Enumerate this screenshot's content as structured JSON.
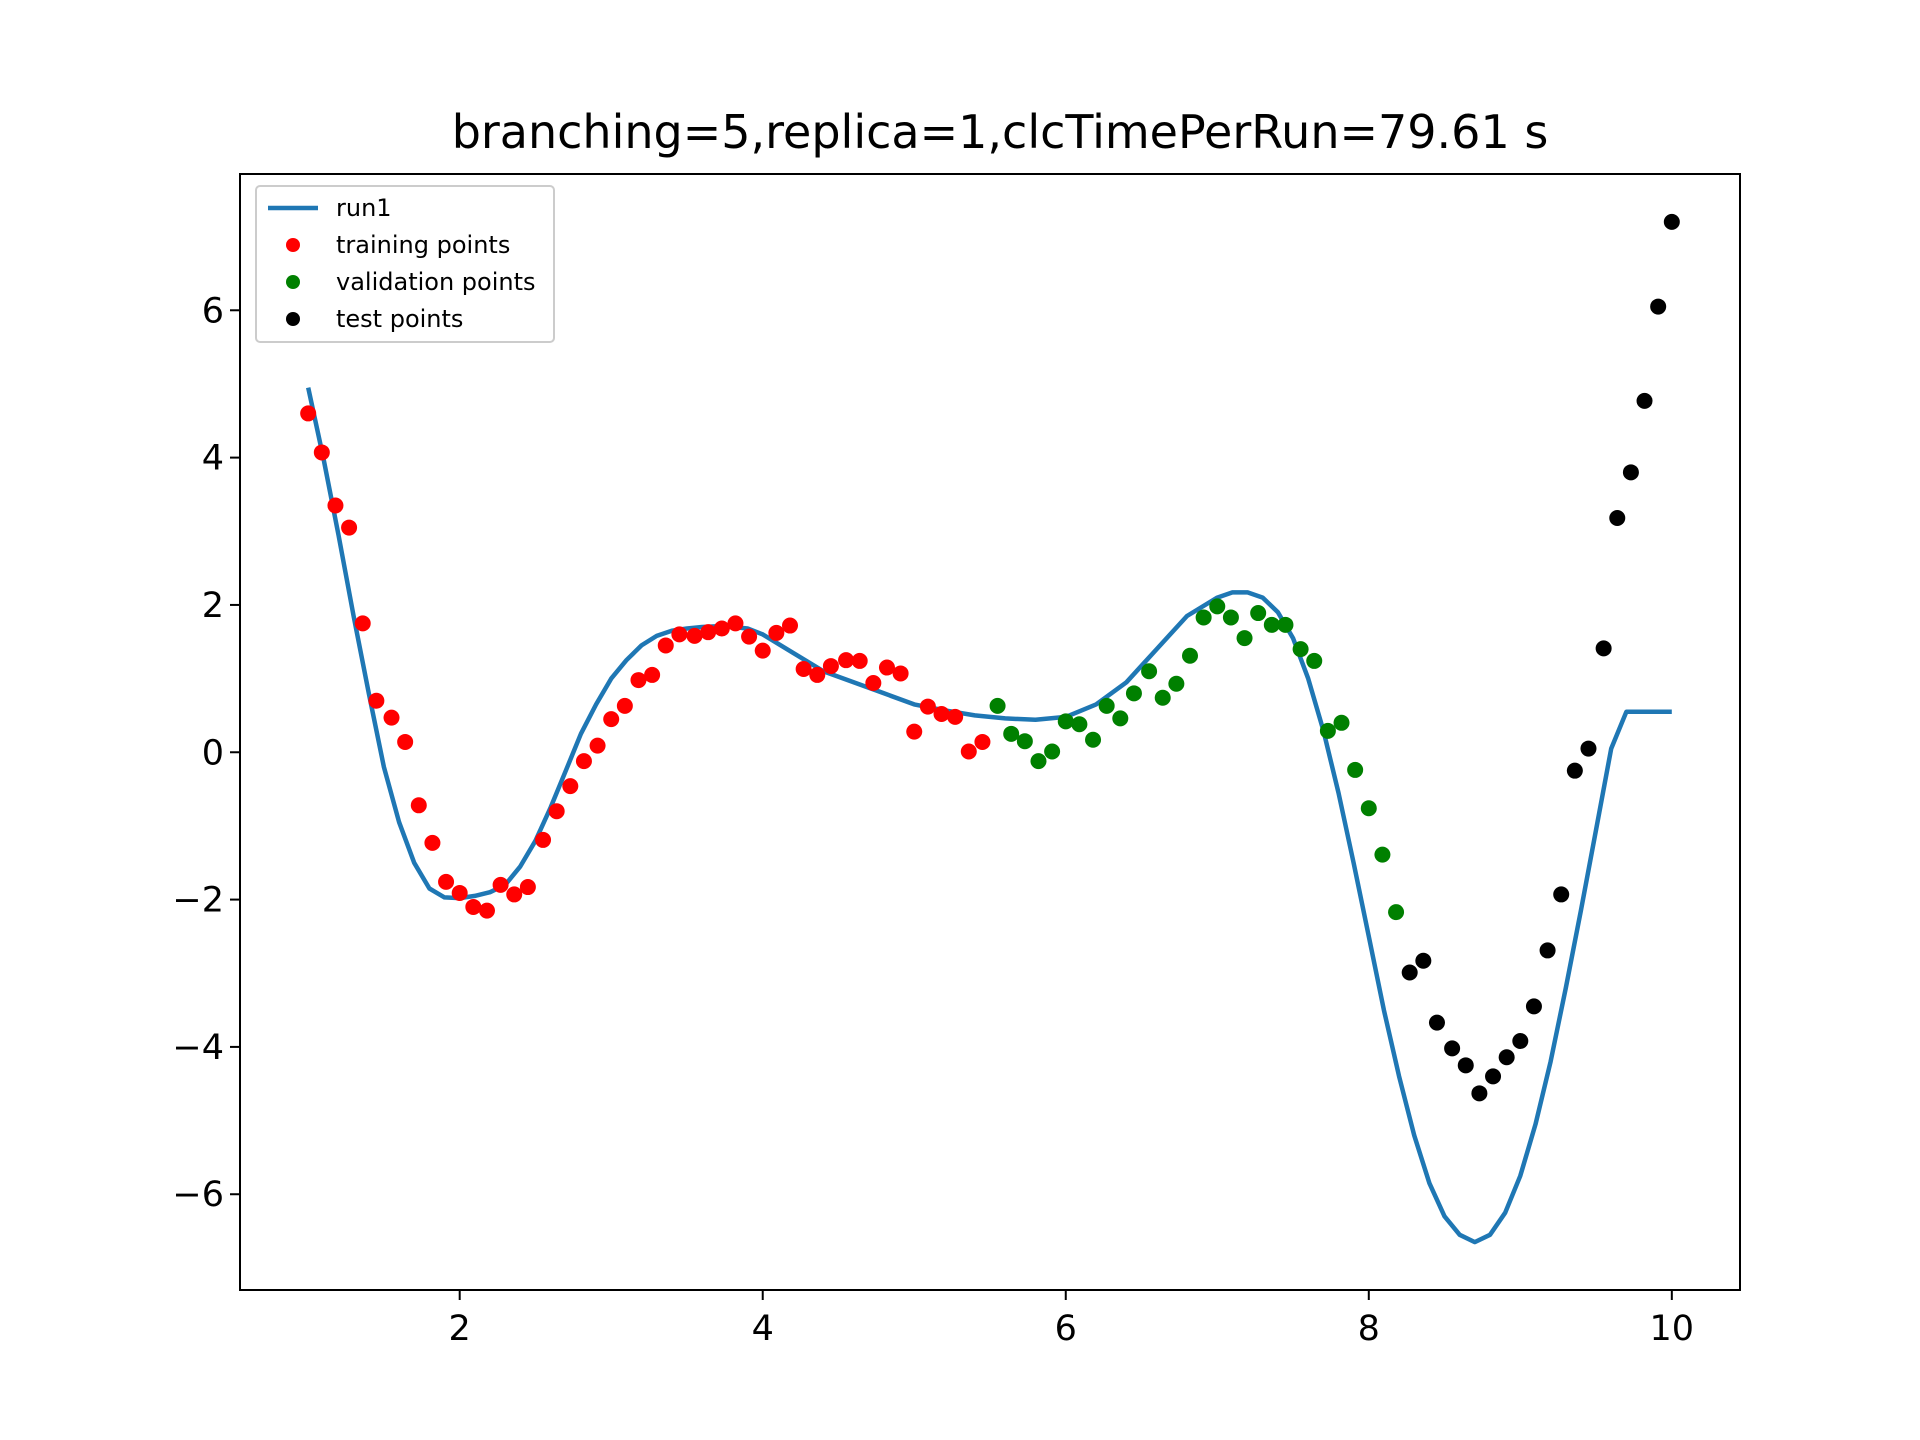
{
  "chart_data": {
    "type": "line",
    "title": "branching=5,replica=1,clcTimePerRun=79.61 s",
    "xlabel": "",
    "ylabel": "",
    "xlim": [
      0.55,
      10.45
    ],
    "ylim": [
      -7.3,
      7.85
    ],
    "xticks": [
      2,
      4,
      6,
      8,
      10
    ],
    "yticks": [
      -6,
      -4,
      -2,
      0,
      2,
      4,
      6
    ],
    "xtick_labels": [
      "2",
      "4",
      "6",
      "8",
      "10"
    ],
    "ytick_labels": [
      "−6",
      "−4",
      "−2",
      "0",
      "2",
      "4",
      "6"
    ],
    "grid": false,
    "legend_position": "top-left",
    "series": [
      {
        "name": "run1",
        "kind": "line",
        "color": "#1f77b4",
        "x": [
          1.0,
          1.1,
          1.2,
          1.3,
          1.4,
          1.5,
          1.6,
          1.7,
          1.8,
          1.9,
          2.0,
          2.1,
          2.2,
          2.3,
          2.4,
          2.5,
          2.6,
          2.7,
          2.8,
          2.9,
          3.0,
          3.1,
          3.2,
          3.3,
          3.4,
          3.5,
          3.6,
          3.7,
          3.8,
          3.9,
          4.0,
          4.2,
          4.4,
          4.6,
          4.8,
          5.0,
          5.2,
          5.4,
          5.6,
          5.8,
          6.0,
          6.2,
          6.4,
          6.6,
          6.8,
          7.0,
          7.1,
          7.2,
          7.3,
          7.4,
          7.5,
          7.6,
          7.7,
          7.8,
          7.9,
          8.0,
          8.1,
          8.2,
          8.3,
          8.4,
          8.5,
          8.6,
          8.7,
          8.8,
          8.9,
          9.0,
          9.1,
          9.2,
          9.3,
          9.4,
          9.5,
          9.6,
          9.7,
          9.8,
          9.9,
          10.0
        ],
        "y": [
          4.95,
          4.0,
          2.95,
          1.85,
          0.8,
          -0.2,
          -0.95,
          -1.5,
          -1.85,
          -1.97,
          -1.98,
          -1.95,
          -1.9,
          -1.8,
          -1.55,
          -1.2,
          -0.75,
          -0.25,
          0.25,
          0.65,
          1.0,
          1.25,
          1.45,
          1.58,
          1.65,
          1.68,
          1.7,
          1.71,
          1.7,
          1.68,
          1.6,
          1.35,
          1.1,
          0.95,
          0.8,
          0.65,
          0.57,
          0.5,
          0.46,
          0.44,
          0.48,
          0.65,
          0.95,
          1.4,
          1.85,
          2.1,
          2.17,
          2.17,
          2.1,
          1.9,
          1.55,
          1.0,
          0.3,
          -0.55,
          -1.5,
          -2.5,
          -3.5,
          -4.4,
          -5.2,
          -5.85,
          -6.3,
          -6.55,
          -6.65,
          -6.55,
          -6.25,
          -5.75,
          -5.05,
          -4.2,
          -3.2,
          -2.15,
          -1.05,
          0.05,
          0.55,
          0.55,
          0.55,
          0.55
        ]
      },
      {
        "name": "training points",
        "kind": "scatter",
        "color": "#ff0000",
        "x": [
          1.0,
          1.09,
          1.18,
          1.27,
          1.36,
          1.45,
          1.55,
          1.64,
          1.73,
          1.82,
          1.91,
          2.0,
          2.09,
          2.18,
          2.27,
          2.36,
          2.45,
          2.55,
          2.64,
          2.73,
          2.82,
          2.91,
          3.0,
          3.09,
          3.18,
          3.27,
          3.36,
          3.45,
          3.55,
          3.64,
          3.73,
          3.82,
          3.91,
          4.0,
          4.09,
          4.18,
          4.27,
          4.36,
          4.45,
          4.55,
          4.64,
          4.73,
          4.82,
          4.91,
          5.0,
          5.09,
          5.18,
          5.27,
          5.36,
          5.45
        ],
        "y": [
          4.6,
          4.07,
          3.35,
          3.05,
          1.75,
          0.7,
          0.47,
          0.14,
          -0.72,
          -1.23,
          -1.76,
          -1.91,
          -2.1,
          -2.15,
          -1.8,
          -1.93,
          -1.83,
          -1.19,
          -0.8,
          -0.46,
          -0.12,
          0.09,
          0.45,
          0.63,
          0.98,
          1.05,
          1.45,
          1.6,
          1.58,
          1.63,
          1.68,
          1.75,
          1.57,
          1.38,
          1.62,
          1.72,
          1.13,
          1.05,
          1.17,
          1.25,
          1.24,
          0.94,
          1.15,
          1.07,
          0.28,
          0.62,
          0.52,
          0.48,
          0.01,
          0.14
        ]
      },
      {
        "name": "validation points",
        "kind": "scatter",
        "color": "#008000",
        "x": [
          5.55,
          5.64,
          5.73,
          5.82,
          5.91,
          6.0,
          6.09,
          6.18,
          6.27,
          6.36,
          6.45,
          6.55,
          6.64,
          6.73,
          6.82,
          6.91,
          7.0,
          7.09,
          7.18,
          7.27,
          7.36,
          7.45,
          7.55,
          7.64,
          7.73,
          7.82,
          7.91,
          8.0,
          8.09,
          8.18
        ],
        "y": [
          0.63,
          0.25,
          0.15,
          -0.12,
          0.01,
          0.42,
          0.38,
          0.17,
          0.63,
          0.46,
          0.8,
          1.1,
          0.74,
          0.93,
          1.31,
          1.83,
          1.98,
          1.83,
          1.55,
          1.89,
          1.73,
          1.73,
          1.4,
          1.24,
          0.29,
          0.4,
          -0.24,
          -0.76,
          -1.39,
          -2.17
        ]
      },
      {
        "name": "test points",
        "kind": "scatter",
        "color": "#000000",
        "x": [
          8.27,
          8.36,
          8.45,
          8.55,
          8.64,
          8.73,
          8.82,
          8.91,
          9.0,
          9.09,
          9.18,
          9.27,
          9.36,
          9.45,
          9.55,
          9.64,
          9.73,
          9.82,
          9.91,
          10.0
        ],
        "y": [
          -2.99,
          -2.83,
          -3.67,
          -4.02,
          -4.25,
          -4.63,
          -4.4,
          -4.14,
          -3.92,
          -3.45,
          -2.69,
          -1.93,
          -0.25,
          0.05,
          1.41,
          3.18,
          3.8,
          4.77,
          6.05,
          7.2
        ]
      }
    ]
  }
}
